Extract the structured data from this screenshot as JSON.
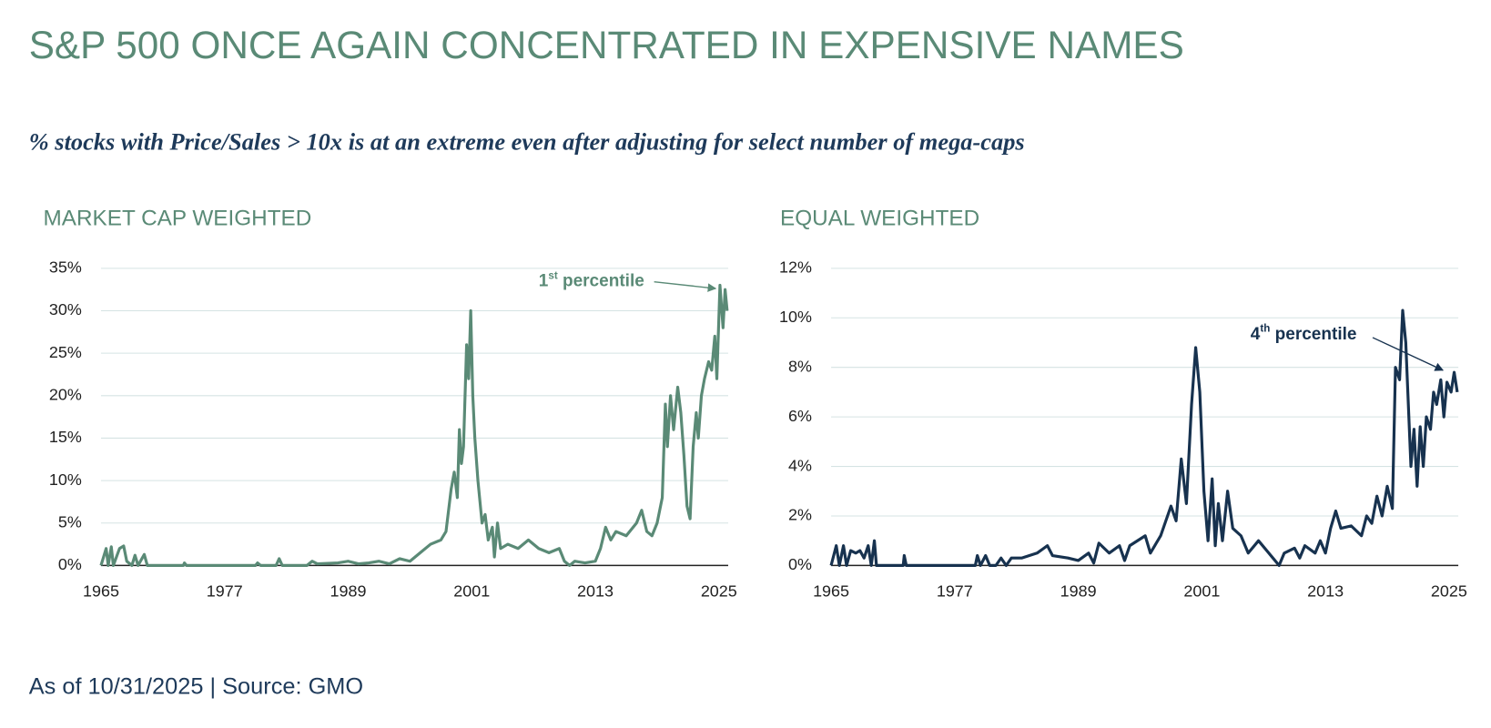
{
  "header": {
    "title": "S&P 500 ONCE AGAIN CONCENTRATED IN EXPENSIVE NAMES",
    "subtitle": "% stocks with Price/Sales > 10x is at an extreme even after adjusting for select number of mega-caps"
  },
  "footer": {
    "source": "As of 10/31/2025 | Source: GMO"
  },
  "chart_data": [
    {
      "type": "line",
      "title": "MARKET CAP WEIGHTED",
      "color": "#5a8a76",
      "annotation": {
        "rank": "1",
        "ordinal": "st",
        "label": "percentile"
      },
      "x": [
        1965,
        1965.5,
        1965.7,
        1966,
        1966.2,
        1966.8,
        1967.2,
        1967.5,
        1968,
        1968.3,
        1968.6,
        1969.2,
        1969.5,
        1973,
        1973.1,
        1973.3,
        1980,
        1980.2,
        1980.5,
        1982,
        1982.3,
        1982.6,
        1985,
        1985.5,
        1986,
        1988,
        1989,
        1990,
        1991,
        1992,
        1993,
        1994,
        1995,
        1996,
        1997,
        1998,
        1998.5,
        1999,
        1999.3,
        1999.6,
        1999.8,
        2000,
        2000.2,
        2000.4,
        2000.5,
        2000.7,
        2000.9,
        2001.1,
        2001.3,
        2001.6,
        2002,
        2002.3,
        2002.6,
        2003,
        2003.2,
        2003.5,
        2003.8,
        2004.5,
        2005.5,
        2006.5,
        2007.5,
        2008.5,
        2009.5,
        2010,
        2010.5,
        2011,
        2012,
        2013,
        2013.5,
        2014,
        2014.5,
        2015,
        2016,
        2017,
        2017.5,
        2018,
        2018.5,
        2019,
        2019.5,
        2019.8,
        2020,
        2020.3,
        2020.6,
        2021,
        2021.3,
        2021.6,
        2021.9,
        2022.2,
        2022.5,
        2022.8,
        2023,
        2023.3,
        2023.6,
        2024,
        2024.3,
        2024.6,
        2024.8,
        2025.1,
        2025.4,
        2025.6,
        2025.8
      ],
      "values": [
        0,
        2,
        0,
        2.2,
        0,
        2,
        2.3,
        0.5,
        0,
        1.2,
        0,
        1.3,
        0,
        0,
        0.3,
        0,
        0,
        0.3,
        0,
        0,
        0.8,
        0,
        0,
        0.5,
        0.2,
        0.3,
        0.5,
        0.2,
        0.3,
        0.5,
        0.2,
        0.8,
        0.5,
        1.5,
        2.5,
        3,
        4,
        9,
        11,
        8,
        16,
        12,
        14,
        22,
        26,
        22,
        30,
        20,
        15,
        10,
        5,
        6,
        3,
        4.5,
        1,
        5,
        2,
        2.5,
        2,
        3,
        2,
        1.5,
        2,
        0.5,
        0,
        0.5,
        0.3,
        0.5,
        2,
        4.5,
        3,
        4,
        3.5,
        5,
        6.5,
        4,
        3.5,
        5,
        8,
        19,
        14,
        20,
        16,
        21,
        18,
        13,
        7,
        5.5,
        14,
        18,
        15,
        20,
        22,
        24,
        23,
        27,
        22,
        33,
        28,
        32.5,
        30
      ],
      "xlim": [
        1965,
        2025.9
      ],
      "xticks": [
        1965,
        1977,
        1989,
        2001,
        2013,
        2025
      ],
      "ylim": [
        0,
        35
      ],
      "yticks": [
        {
          "value": 0,
          "label": "0%"
        },
        {
          "value": 5,
          "label": "5%"
        },
        {
          "value": 10,
          "label": "10%"
        },
        {
          "value": 15,
          "label": "15%"
        },
        {
          "value": 20,
          "label": "20%"
        },
        {
          "value": 25,
          "label": "25%"
        },
        {
          "value": 30,
          "label": "30%"
        },
        {
          "value": 35,
          "label": "35%"
        }
      ],
      "grid": true
    },
    {
      "type": "line",
      "title": "EQUAL WEIGHTED",
      "color": "#17324f",
      "annotation": {
        "rank": "4",
        "ordinal": "th",
        "label": "percentile"
      },
      "x": [
        1965,
        1965.5,
        1965.8,
        1966.2,
        1966.5,
        1966.9,
        1967.4,
        1967.8,
        1968.2,
        1968.6,
        1968.9,
        1969.2,
        1969.4,
        1972,
        1972.1,
        1972.3,
        1979,
        1979.2,
        1979.5,
        1980,
        1980.4,
        1981,
        1981.5,
        1982,
        1982.5,
        1983.5,
        1985,
        1986,
        1986.5,
        1988,
        1989,
        1990,
        1990.5,
        1991,
        1992,
        1993,
        1993.5,
        1994,
        1995.5,
        1996,
        1997,
        1998,
        1998.5,
        1999,
        1999.5,
        2000,
        2000.4,
        2000.8,
        2001.2,
        2001.6,
        2002,
        2002.3,
        2002.6,
        2003,
        2003.5,
        2004,
        2004.8,
        2005.5,
        2006.5,
        2007.5,
        2008.5,
        2009,
        2010,
        2010.5,
        2011,
        2012,
        2012.5,
        2013,
        2013.5,
        2014,
        2014.5,
        2015.5,
        2016.5,
        2017,
        2017.5,
        2018,
        2018.5,
        2019,
        2019.5,
        2019.8,
        2020.2,
        2020.5,
        2020.8,
        2021,
        2021.3,
        2021.6,
        2021.9,
        2022.2,
        2022.5,
        2022.8,
        2023.2,
        2023.5,
        2023.8,
        2024.2,
        2024.5,
        2024.8,
        2025.2,
        2025.5,
        2025.8
      ],
      "values": [
        0,
        0.8,
        0,
        0.8,
        0,
        0.6,
        0.5,
        0.6,
        0.3,
        0.8,
        0,
        1,
        0,
        0,
        0.4,
        0,
        0,
        0.4,
        0,
        0.4,
        0,
        0,
        0.3,
        0,
        0.3,
        0.3,
        0.5,
        0.8,
        0.4,
        0.3,
        0.2,
        0.5,
        0.1,
        0.9,
        0.5,
        0.8,
        0.2,
        0.8,
        1.2,
        0.5,
        1.2,
        2.4,
        1.8,
        4.3,
        2.5,
        6.5,
        8.8,
        7,
        3,
        1,
        3.5,
        0.8,
        2.5,
        1,
        3,
        1.5,
        1.2,
        0.5,
        1,
        0.5,
        0,
        0.5,
        0.7,
        0.3,
        0.8,
        0.5,
        1,
        0.5,
        1.5,
        2.2,
        1.5,
        1.6,
        1.2,
        2,
        1.7,
        2.8,
        2,
        3.2,
        2.3,
        8,
        7.5,
        10.3,
        9,
        7,
        4,
        5.5,
        3.2,
        5.6,
        4,
        6,
        5.5,
        7,
        6.5,
        7.5,
        6,
        7.4,
        7,
        7.8,
        7
      ],
      "xlim": [
        1965,
        2025.9
      ],
      "xticks": [
        1965,
        1977,
        1989,
        2001,
        2013,
        2025
      ],
      "ylim": [
        0,
        12
      ],
      "yticks": [
        {
          "value": 0,
          "label": "0%"
        },
        {
          "value": 2,
          "label": "2%"
        },
        {
          "value": 4,
          "label": "4%"
        },
        {
          "value": 6,
          "label": "6%"
        },
        {
          "value": 8,
          "label": "8%"
        },
        {
          "value": 10,
          "label": "10%"
        },
        {
          "value": 12,
          "label": "12%"
        }
      ],
      "grid": true
    }
  ]
}
